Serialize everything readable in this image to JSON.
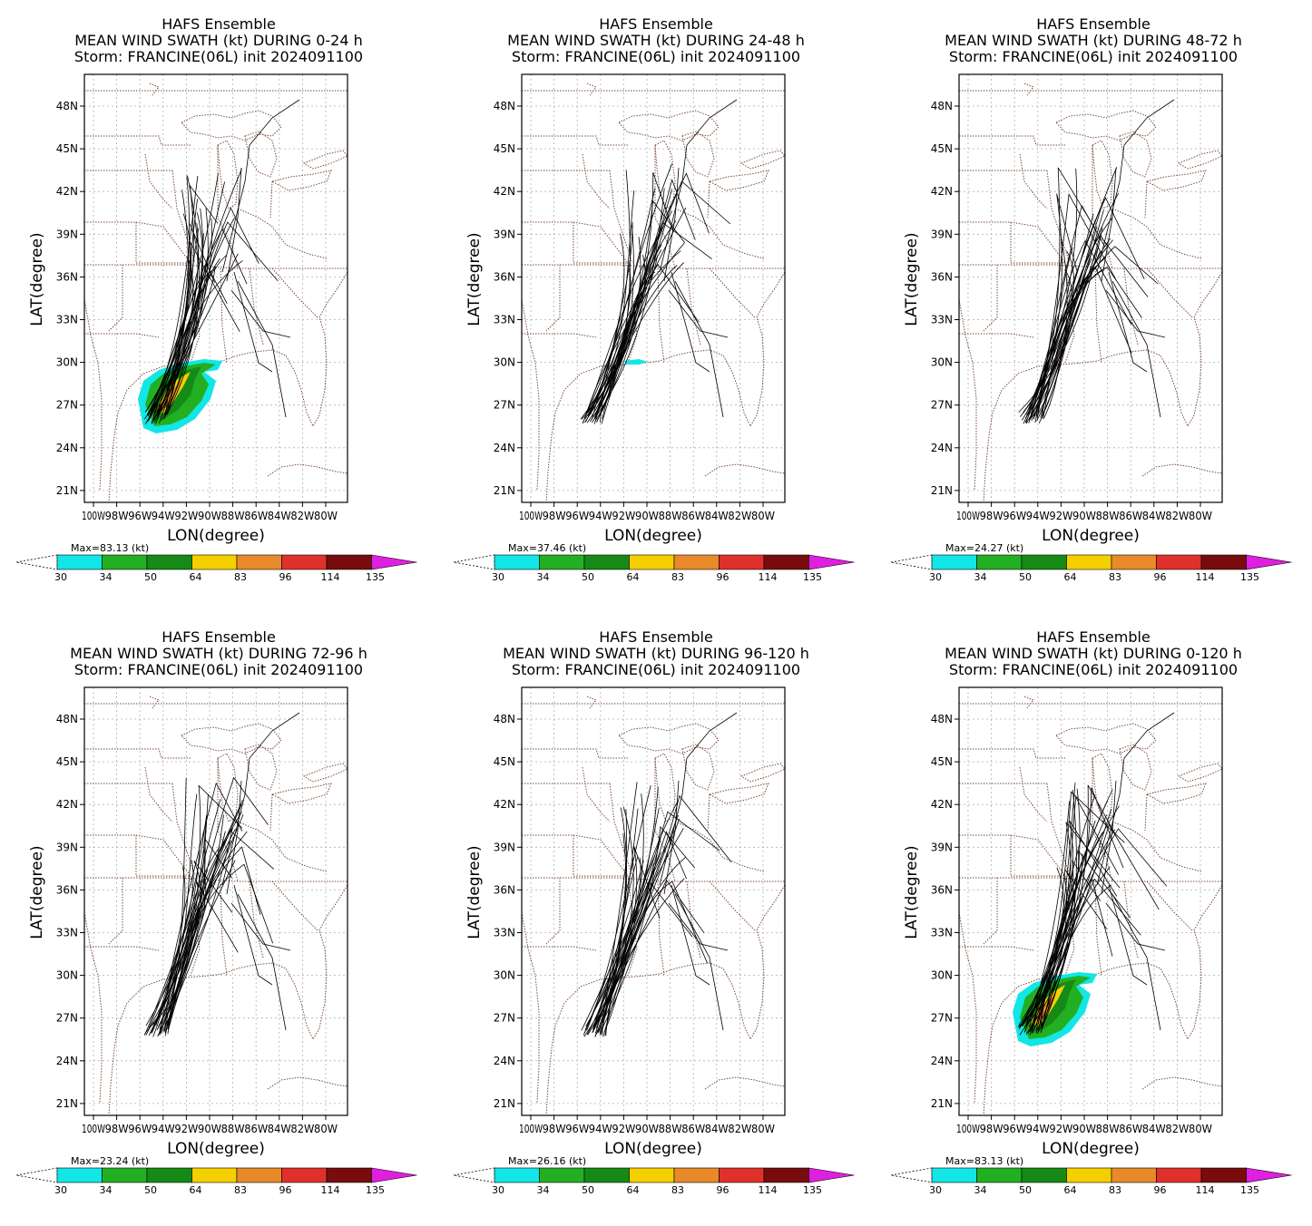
{
  "shared": {
    "ylabel": "LAT(degree)",
    "xlabel": "LON(degree)",
    "lat_ticks": [
      "48N",
      "45N",
      "42N",
      "39N",
      "36N",
      "33N",
      "30N",
      "27N",
      "24N",
      "21N"
    ],
    "lon_ticks": [
      "100W",
      "98W",
      "96W",
      "94W",
      "92W",
      "90W",
      "88W",
      "86W",
      "84W",
      "82W",
      "80W"
    ],
    "colorbar_levels": [
      "30",
      "34",
      "50",
      "64",
      "83",
      "96",
      "114",
      "135"
    ],
    "colorbar_colors": [
      "#12e6e6",
      "#22b022",
      "#168a16",
      "#f5d000",
      "#e88a2a",
      "#e0302c",
      "#780c0c",
      "#e020e0"
    ]
  },
  "panels": [
    {
      "title1": "HAFS Ensemble",
      "title2": "MEAN WIND SWATH (kt) DURING  0-24 h",
      "title3": "Storm: FRANCINE(06L) init 2024091100",
      "max": "Max=83.13 (kt)",
      "swath": "full"
    },
    {
      "title1": "HAFS Ensemble",
      "title2": "MEAN WIND SWATH (kt) DURING 24-48 h",
      "title3": "Storm: FRANCINE(06L) init 2024091100",
      "max": "Max=37.46 (kt)",
      "swath": "small"
    },
    {
      "title1": "HAFS Ensemble",
      "title2": "MEAN WIND SWATH (kt) DURING 48-72 h",
      "title3": "Storm: FRANCINE(06L) init 2024091100",
      "max": "Max=24.27 (kt)",
      "swath": "none"
    },
    {
      "title1": "HAFS Ensemble",
      "title2": "MEAN WIND SWATH (kt) DURING 72-96 h",
      "title3": "Storm: FRANCINE(06L) init 2024091100",
      "max": "Max=23.24 (kt)",
      "swath": "none"
    },
    {
      "title1": "HAFS Ensemble",
      "title2": "MEAN WIND SWATH (kt) DURING 96-120 h",
      "title3": "Storm: FRANCINE(06L) init 2024091100",
      "max": "Max=26.16 (kt)",
      "swath": "none"
    },
    {
      "title1": "HAFS Ensemble",
      "title2": "MEAN WIND SWATH (kt) DURING 0-120 h",
      "title3": "Storm: FRANCINE(06L) init 2024091100",
      "max": "Max=83.13 (kt)",
      "swath": "full"
    }
  ]
}
